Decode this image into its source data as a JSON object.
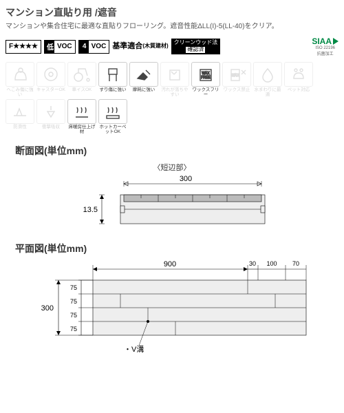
{
  "header": {
    "title": "マンション直貼り用 /遮音",
    "subtitle": "マンションや集合住宅に最適な直貼りフローリング。遮音性能ΔLL(I)-5(LL-40)をクリア。"
  },
  "badges": {
    "fstar": "F★★★★",
    "low_prefix": "低",
    "four_prefix": "4",
    "voc": "VOC",
    "standard": "基準適合",
    "standard_sub": "(木質建材)",
    "cleanwood": "クリーンウッド法",
    "cleanwood_sub": "確認済",
    "siaa": "SIAA",
    "siaa_iso": "ISO 22196",
    "siaa_sub": "抗菌加工"
  },
  "icons": {
    "row": [
      {
        "label": "へこみ傷に強い",
        "active": false
      },
      {
        "label": "キャスターOK",
        "active": false
      },
      {
        "label": "車イスOK",
        "active": false
      },
      {
        "label": "すり傷に強い",
        "active": true
      },
      {
        "label": "摩耗に強い",
        "active": true
      },
      {
        "label": "汚れが落ちやすい",
        "active": false
      },
      {
        "label": "ワックスフリー",
        "active": true
      },
      {
        "label": "ワックス禁止",
        "active": false
      },
      {
        "label": "水まわりに最適",
        "active": false
      },
      {
        "label": "ペット対応",
        "active": false
      },
      {
        "label": "防滑性",
        "active": false
      },
      {
        "label": "衝撃吸収",
        "active": false
      },
      {
        "label": "床暖房仕上げ材",
        "active": true
      },
      {
        "label": "ホットカーペットOK",
        "active": true
      }
    ]
  },
  "sections": {
    "cross_title": "断面図(単位mm)",
    "cross_sub": "〈短辺部〉",
    "plan_title": "平面図(単位mm)"
  },
  "cross_section": {
    "width_label": "300",
    "thickness_label": "13.5"
  },
  "plan_view": {
    "total_w": "900",
    "d1": "30",
    "d2": "100",
    "d3": "70",
    "total_h": "300",
    "row_h": "75",
    "vgroove": "・V溝"
  }
}
